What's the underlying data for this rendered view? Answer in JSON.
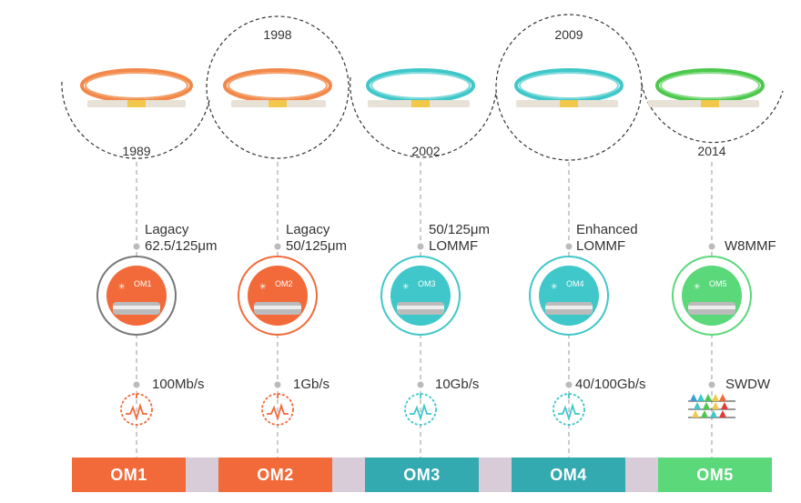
{
  "colors": {
    "om1": "#f26a3a",
    "om2": "#f26a3a",
    "om3": "#33a9b0",
    "om4": "#33a9b0",
    "om5": "#5ad87a",
    "gap": "#d8ccd8",
    "cable_orange": "#f2884a",
    "cable_aqua": "#3fc7c9",
    "cable_green": "#4cc84c"
  },
  "types": [
    {
      "id": "OM1",
      "year": "1989",
      "label_line1": "Lagacy",
      "label_line2": "62.5/125μm",
      "speed": "100Mb/s",
      "bar_label": "OM1",
      "spool_text": "OM1",
      "icon": "speedometer-icon"
    },
    {
      "id": "OM2",
      "year": "1998",
      "label_line1": "Lagacy",
      "label_line2": "50/125μm",
      "speed": "1Gb/s",
      "bar_label": "OM2",
      "spool_text": "OM2",
      "icon": "speedometer-icon"
    },
    {
      "id": "OM3",
      "year": "2002",
      "label_line1": "50/125μm",
      "label_line2": "LOMMF",
      "speed": "10Gb/s",
      "bar_label": "OM3",
      "spool_text": "OM3",
      "icon": "speedometer-icon"
    },
    {
      "id": "OM4",
      "year": "2009",
      "label_line1": "Enhanced",
      "label_line2": "LOMMF",
      "speed": "40/100Gb/s",
      "bar_label": "OM4",
      "spool_text": "OM4",
      "icon": "speedometer-icon"
    },
    {
      "id": "OM5",
      "year": "2014",
      "label_line1": "",
      "label_line2": "W8MMF",
      "speed": "SWDW",
      "bar_label": "OM5",
      "spool_text": "OM5",
      "icon": "wavelength-icon"
    }
  ]
}
